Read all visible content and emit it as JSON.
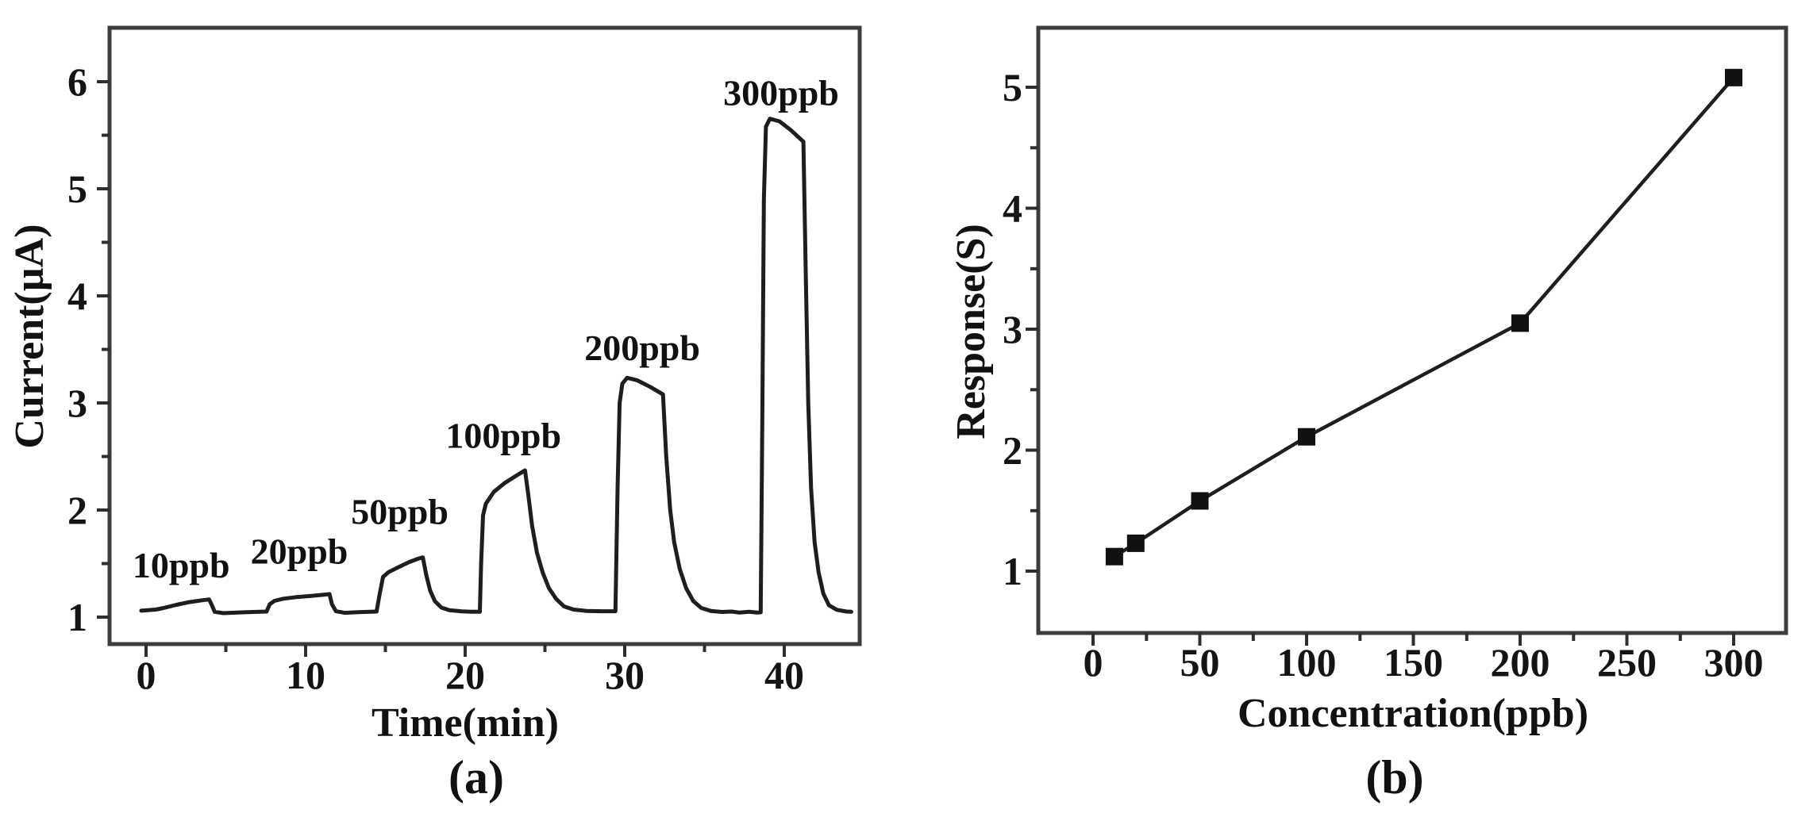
{
  "figure": {
    "panel_a_label": "(a)",
    "panel_b_label": "(b)",
    "background": "#ffffff"
  },
  "style": {
    "ink": "#1e1e1e",
    "frame": "#3c3c3c",
    "text": "#141414"
  },
  "chart_data": [
    {
      "id": "a",
      "type": "line",
      "title": "",
      "xlabel": "Time(min)",
      "ylabel": "Current(µA)",
      "xlim": [
        -2.3,
        44.8
      ],
      "ylim": [
        0.75,
        6.5
      ],
      "xticks": [
        0,
        10,
        20,
        30,
        40
      ],
      "xminorticks": [
        5,
        15,
        25,
        35
      ],
      "yticks": [
        1,
        2,
        3,
        4,
        5,
        6
      ],
      "yminorticks": [
        1.5,
        2.5,
        3.5,
        4.5,
        5.5
      ],
      "grid": false,
      "legend_position": "none",
      "annotations": [
        {
          "text": "10ppb",
          "x": 2.2,
          "y": 1.49
        },
        {
          "text": "20ppb",
          "x": 9.6,
          "y": 1.62
        },
        {
          "text": "50ppb",
          "x": 15.9,
          "y": 1.99
        },
        {
          "text": "100ppb",
          "x": 22.4,
          "y": 2.7
        },
        {
          "text": "200ppb",
          "x": 31.1,
          "y": 3.52
        },
        {
          "text": "300ppb",
          "x": 39.8,
          "y": 5.9
        }
      ],
      "series": [
        {
          "name": "sensor-current-trace",
          "points": [
            [
              -0.3,
              1.06
            ],
            [
              0.6,
              1.07
            ],
            [
              1.1,
              1.085
            ],
            [
              1.9,
              1.115
            ],
            [
              2.7,
              1.14
            ],
            [
              3.5,
              1.157
            ],
            [
              3.95,
              1.165
            ],
            [
              4.1,
              1.12
            ],
            [
              4.3,
              1.05
            ],
            [
              4.85,
              1.037
            ],
            [
              5.7,
              1.043
            ],
            [
              6.7,
              1.048
            ],
            [
              7.55,
              1.052
            ],
            [
              7.75,
              1.12
            ],
            [
              8.05,
              1.152
            ],
            [
              8.6,
              1.172
            ],
            [
              9.4,
              1.187
            ],
            [
              10.3,
              1.197
            ],
            [
              11.2,
              1.21
            ],
            [
              11.5,
              1.215
            ],
            [
              11.65,
              1.12
            ],
            [
              11.9,
              1.055
            ],
            [
              12.45,
              1.04
            ],
            [
              13.3,
              1.046
            ],
            [
              14.45,
              1.052
            ],
            [
              14.62,
              1.2
            ],
            [
              14.85,
              1.375
            ],
            [
              15.2,
              1.42
            ],
            [
              15.8,
              1.465
            ],
            [
              16.5,
              1.515
            ],
            [
              17.1,
              1.548
            ],
            [
              17.35,
              1.558
            ],
            [
              17.55,
              1.4
            ],
            [
              17.8,
              1.25
            ],
            [
              18.1,
              1.15
            ],
            [
              18.5,
              1.09
            ],
            [
              19.0,
              1.065
            ],
            [
              19.8,
              1.053
            ],
            [
              20.4,
              1.05
            ],
            [
              20.92,
              1.05
            ],
            [
              21.0,
              1.5
            ],
            [
              21.12,
              1.95
            ],
            [
              21.3,
              2.06
            ],
            [
              21.8,
              2.17
            ],
            [
              22.5,
              2.255
            ],
            [
              23.2,
              2.32
            ],
            [
              23.75,
              2.37
            ],
            [
              23.95,
              2.15
            ],
            [
              24.2,
              1.85
            ],
            [
              24.5,
              1.6
            ],
            [
              24.85,
              1.42
            ],
            [
              25.25,
              1.27
            ],
            [
              25.7,
              1.17
            ],
            [
              26.2,
              1.1
            ],
            [
              26.8,
              1.07
            ],
            [
              27.6,
              1.058
            ],
            [
              28.6,
              1.055
            ],
            [
              29.42,
              1.055
            ],
            [
              29.55,
              2.2
            ],
            [
              29.68,
              3.0
            ],
            [
              29.85,
              3.18
            ],
            [
              30.15,
              3.235
            ],
            [
              30.8,
              3.21
            ],
            [
              31.6,
              3.15
            ],
            [
              32.4,
              3.08
            ],
            [
              32.6,
              2.5
            ],
            [
              32.85,
              2.0
            ],
            [
              33.1,
              1.7
            ],
            [
              33.45,
              1.45
            ],
            [
              33.85,
              1.27
            ],
            [
              34.3,
              1.15
            ],
            [
              34.8,
              1.085
            ],
            [
              35.4,
              1.058
            ],
            [
              36.1,
              1.048
            ],
            [
              36.7,
              1.052
            ],
            [
              37.2,
              1.042
            ],
            [
              37.8,
              1.05
            ],
            [
              38.3,
              1.042
            ],
            [
              38.52,
              1.045
            ],
            [
              38.62,
              2.8
            ],
            [
              38.72,
              4.9
            ],
            [
              38.85,
              5.58
            ],
            [
              39.1,
              5.655
            ],
            [
              39.7,
              5.63
            ],
            [
              40.4,
              5.55
            ],
            [
              41.2,
              5.44
            ],
            [
              41.35,
              4.2
            ],
            [
              41.5,
              3.0
            ],
            [
              41.68,
              2.2
            ],
            [
              41.9,
              1.7
            ],
            [
              42.15,
              1.42
            ],
            [
              42.45,
              1.22
            ],
            [
              42.8,
              1.11
            ],
            [
              43.3,
              1.068
            ],
            [
              43.9,
              1.052
            ],
            [
              44.2,
              1.05
            ]
          ]
        }
      ]
    },
    {
      "id": "b",
      "type": "scatter",
      "title": "",
      "xlabel": "Concentration(ppb)",
      "ylabel": "Response(S)",
      "xlim": [
        -24,
        325
      ],
      "ylim": [
        0.5,
        5.48
      ],
      "xticks": [
        0,
        50,
        100,
        150,
        200,
        250,
        300
      ],
      "xminorticks": [
        25,
        75,
        125,
        175,
        225,
        275
      ],
      "yticks": [
        1,
        2,
        3,
        4,
        5
      ],
      "yminorticks": [
        1.5,
        2.5,
        3.5,
        4.5
      ],
      "grid": false,
      "legend_position": "none",
      "x": [
        10,
        20,
        50,
        100,
        200,
        300
      ],
      "y": [
        1.12,
        1.23,
        1.58,
        2.11,
        3.05,
        5.08
      ],
      "marker": "filled-square"
    }
  ]
}
